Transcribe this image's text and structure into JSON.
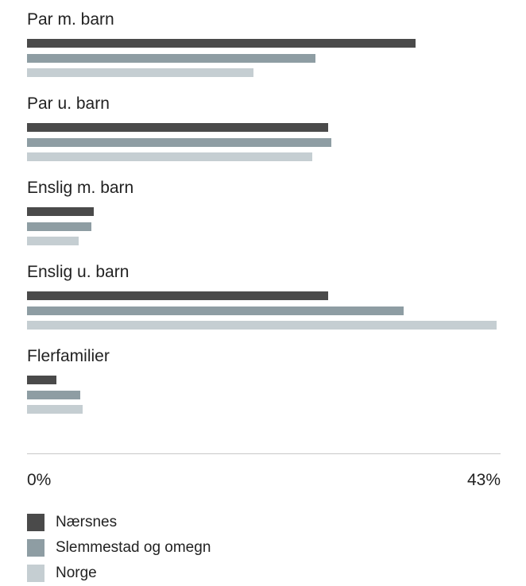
{
  "chart_data": {
    "type": "bar",
    "orientation": "horizontal",
    "categories": [
      "Par m. barn",
      "Par u. barn",
      "Enslig m. barn",
      "Enslig u. barn",
      "Flerfamilier"
    ],
    "series": [
      {
        "name": "Nærsnes",
        "color": "#4a4a4a",
        "values": [
          35.5,
          27.5,
          6.1,
          27.5,
          2.7
        ]
      },
      {
        "name": "Slemmestad og omegn",
        "color": "#8e9da3",
        "values": [
          26.4,
          27.8,
          5.9,
          34.4,
          4.9
        ]
      },
      {
        "name": "Norge",
        "color": "#c5ced2",
        "values": [
          20.7,
          26.1,
          4.7,
          42.9,
          5.1
        ]
      }
    ],
    "xlim": [
      0,
      43
    ],
    "tick_labels": {
      "min": "0%",
      "max": "43%"
    },
    "grid": false,
    "legend_position": "bottom-left"
  }
}
